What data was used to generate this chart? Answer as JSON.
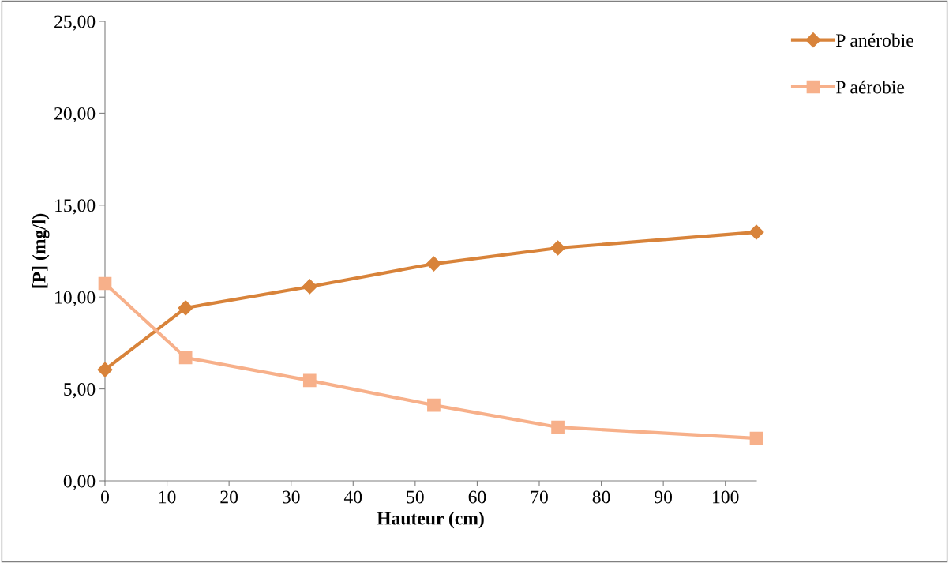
{
  "chart_data": {
    "type": "line",
    "xlabel": "Hauteur (cm)",
    "ylabel": "[P] (mg/l)",
    "x": [
      0,
      13,
      33,
      53,
      73,
      105
    ],
    "series": [
      {
        "name": "P anérobie",
        "color": "#d8833a",
        "marker": "diamond",
        "values": [
          6.05,
          9.41,
          10.57,
          11.81,
          12.67,
          13.53
        ]
      },
      {
        "name": "P aérobie",
        "color": "#f7b08a",
        "marker": "square",
        "values": [
          10.74,
          6.7,
          5.46,
          4.12,
          2.92,
          2.32
        ]
      }
    ],
    "xlim": [
      0,
      105
    ],
    "xticks": [
      0,
      10,
      20,
      30,
      40,
      50,
      60,
      70,
      80,
      90,
      100
    ],
    "ylim": [
      0,
      25
    ],
    "yticks": [
      {
        "value": 0,
        "label": "0,00"
      },
      {
        "value": 5,
        "label": "5,00"
      },
      {
        "value": 10,
        "label": "10,00"
      },
      {
        "value": 15,
        "label": "15,00"
      },
      {
        "value": 20,
        "label": "20,00"
      },
      {
        "value": 25,
        "label": "25,00"
      }
    ],
    "grid": false,
    "legend": "top right",
    "line_style": "solid"
  }
}
